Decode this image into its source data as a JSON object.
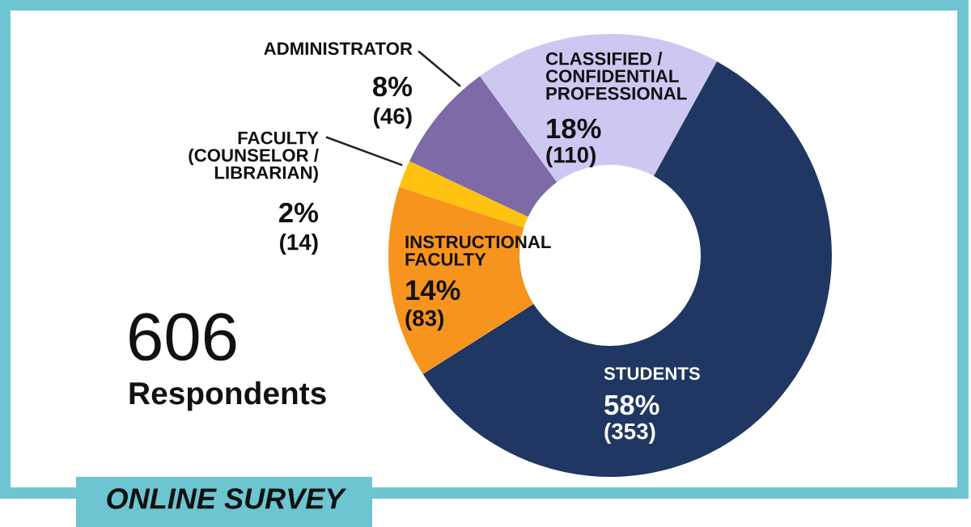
{
  "chart_data": {
    "type": "donut",
    "categories": [
      "CLASSIFIED / CONFIDENTIAL PROFESSIONAL",
      "STUDENTS",
      "INSTRUCTIONAL FACULTY",
      "FACULTY (COUNSELOR / LIBRARIAN)",
      "ADMINISTRATOR"
    ],
    "values": [
      18,
      58,
      14,
      2,
      8
    ],
    "value_labels": [
      "18%",
      "58%",
      "14%",
      "2%",
      "8%"
    ],
    "colors": [
      "#cdc8f2",
      "#1f3762",
      "#f7941d",
      "#ffc20e",
      "#7d6aa6"
    ],
    "annotations": [
      "(110)",
      "(353)",
      "(83)",
      "(14)",
      "(46)",
      "606",
      "Respondents",
      "ONLINE SURVEY"
    ],
    "legend": false
  }
}
